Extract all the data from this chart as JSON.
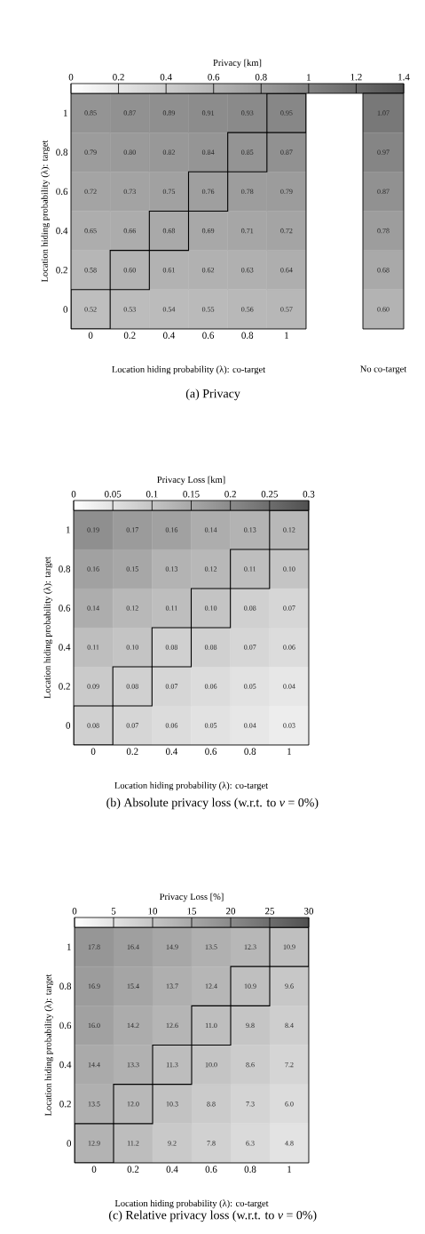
{
  "chart_data": [
    {
      "type": "heatmap",
      "title": "(a) Privacy",
      "xlabel": "Location hiding probability (λ): co-target",
      "ylabel": "Location hiding probability (λ): target",
      "clabel": "Privacy [km]",
      "categories": [
        "0",
        "0.2",
        "0.4",
        "0.6",
        "0.8",
        "1"
      ],
      "y_categories": [
        "1",
        "0.8",
        "0.6",
        "0.4",
        "0.2",
        "0"
      ],
      "cells": [
        [
          0.85,
          0.87,
          0.89,
          0.91,
          0.93,
          0.95
        ],
        [
          0.79,
          0.8,
          0.82,
          0.84,
          0.85,
          0.87
        ],
        [
          0.72,
          0.73,
          0.75,
          0.76,
          0.78,
          0.79
        ],
        [
          0.65,
          0.66,
          0.68,
          0.69,
          0.71,
          0.72
        ],
        [
          0.58,
          0.6,
          0.61,
          0.62,
          0.63,
          0.64
        ],
        [
          0.52,
          0.53,
          0.54,
          0.55,
          0.56,
          0.57
        ]
      ],
      "cell_labels": [
        [
          "0.85",
          "0.87",
          "0.89",
          "0.91",
          "0.93",
          "0.95"
        ],
        [
          "0.79",
          "0.80",
          "0.82",
          "0.84",
          "0.85",
          "0.87"
        ],
        [
          "0.72",
          "0.73",
          "0.75",
          "0.76",
          "0.78",
          "0.79"
        ],
        [
          "0.65",
          "0.66",
          "0.68",
          "0.69",
          "0.71",
          "0.72"
        ],
        [
          "0.58",
          "0.60",
          "0.61",
          "0.62",
          "0.63",
          "0.64"
        ],
        [
          "0.52",
          "0.53",
          "0.54",
          "0.55",
          "0.56",
          "0.57"
        ]
      ],
      "clim": [
        0,
        1.4
      ],
      "cticks": [
        0,
        0.2,
        0.4,
        0.6,
        0.8,
        1,
        1.2,
        1.4
      ]
    },
    {
      "type": "heatmap",
      "xlabel": "No co-target",
      "categories": [
        null
      ],
      "y_categories": [
        "1",
        "0.8",
        "0.6",
        "0.4",
        "0.2",
        "0"
      ],
      "cells": [
        [
          1.07
        ],
        [
          0.97
        ],
        [
          0.87
        ],
        [
          0.78
        ],
        [
          0.68
        ],
        [
          0.6
        ]
      ],
      "cell_labels": [
        [
          "1.07"
        ],
        [
          "0.97"
        ],
        [
          "0.87"
        ],
        [
          "0.78"
        ],
        [
          "0.68"
        ],
        [
          "0.60"
        ]
      ],
      "tick_labels": false
    },
    {
      "type": "heatmap",
      "title": "(b) Absolute privacy loss (w.r.t. to *ν* = 0%)",
      "xlabel": "Location hiding probability (λ): co-target",
      "ylabel": "Location hiding probability (λ): target",
      "clabel": "Privacy Loss [km]",
      "categories": [
        "0",
        "0.2",
        "0.4",
        "0.6",
        "0.8",
        "1"
      ],
      "y_categories": [
        "1",
        "0.8",
        "0.6",
        "0.4",
        "0.2",
        "0"
      ],
      "cells": [
        [
          0.19,
          0.17,
          0.16,
          0.14,
          0.13,
          0.12
        ],
        [
          0.16,
          0.15,
          0.13,
          0.12,
          0.11,
          0.1
        ],
        [
          0.14,
          0.12,
          0.11,
          0.1,
          0.08,
          0.07
        ],
        [
          0.11,
          0.1,
          0.08,
          0.08,
          0.07,
          0.06
        ],
        [
          0.09,
          0.08,
          0.07,
          0.06,
          0.05,
          0.04
        ],
        [
          0.08,
          0.07,
          0.06,
          0.05,
          0.04,
          0.03
        ]
      ],
      "cell_labels": [
        [
          "0.19",
          "0.17",
          "0.16",
          "0.14",
          "0.13",
          "0.12"
        ],
        [
          "0.16",
          "0.15",
          "0.13",
          "0.12",
          "0.11",
          "0.10"
        ],
        [
          "0.14",
          "0.12",
          "0.11",
          "0.10",
          "0.08",
          "0.07"
        ],
        [
          "0.11",
          "0.10",
          "0.08",
          "0.08",
          "0.07",
          "0.06"
        ],
        [
          "0.09",
          "0.08",
          "0.07",
          "0.06",
          "0.05",
          "0.04"
        ],
        [
          "0.08",
          "0.07",
          "0.06",
          "0.05",
          "0.04",
          "0.03"
        ]
      ],
      "clim": [
        0,
        0.3
      ],
      "cticks": [
        0,
        0.05,
        0.1,
        0.15,
        0.2,
        0.25,
        0.3
      ]
    },
    {
      "type": "heatmap",
      "title": "(c) Relative privacy loss (w.r.t. to *ν* = 0%)",
      "xlabel": "Location hiding probability (λ): co-target",
      "ylabel": "Location hiding probability (λ): target",
      "clabel": "Privacy Loss [%]",
      "categories": [
        "0",
        "0.2",
        "0.4",
        "0.6",
        "0.8",
        "1"
      ],
      "y_categories": [
        "1",
        "0.8",
        "0.6",
        "0.4",
        "0.2",
        "0"
      ],
      "cells": [
        [
          17.8,
          16.4,
          14.9,
          13.5,
          12.3,
          10.9
        ],
        [
          16.9,
          15.4,
          13.7,
          12.4,
          10.9,
          9.6
        ],
        [
          16.0,
          14.2,
          12.6,
          11.0,
          9.8,
          8.4
        ],
        [
          14.4,
          13.3,
          11.3,
          10.0,
          8.6,
          7.2
        ],
        [
          13.5,
          12.0,
          10.3,
          8.8,
          7.3,
          6.0
        ],
        [
          12.9,
          11.2,
          9.2,
          7.8,
          6.3,
          4.8
        ]
      ],
      "cell_labels": [
        [
          "17.8",
          "16.4",
          "14.9",
          "13.5",
          "12.3",
          "10.9"
        ],
        [
          "16.9",
          "15.4",
          "13.7",
          "12.4",
          "10.9",
          "9.6"
        ],
        [
          "16.0",
          "14.2",
          "12.6",
          "11.0",
          "9.8",
          "8.4"
        ],
        [
          "14.4",
          "13.3",
          "11.3",
          "10.0",
          "8.6",
          "7.2"
        ],
        [
          "13.5",
          "12.0",
          "10.3",
          "8.8",
          "7.3",
          "6.0"
        ],
        [
          "12.9",
          "11.2",
          "9.2",
          "7.8",
          "6.3",
          "4.8"
        ]
      ],
      "clim": [
        0,
        30
      ],
      "cticks": [
        0,
        5,
        10,
        15,
        20,
        25,
        30
      ]
    }
  ]
}
